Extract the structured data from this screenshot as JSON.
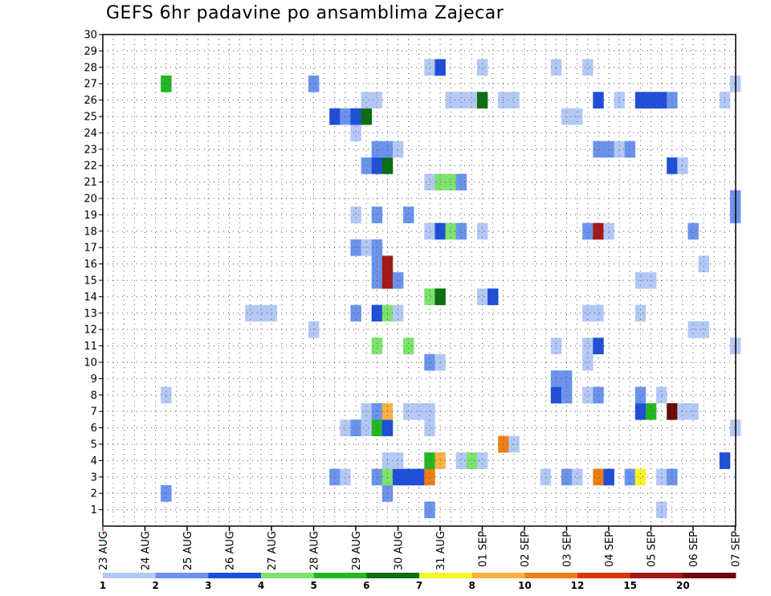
{
  "chart_data": {
    "type": "heatmap",
    "title": "GEFS 6hr padavine po ansamblima Zajecar",
    "x_tick_labels": [
      "23 AUG",
      "24 AUG",
      "25 AUG",
      "26 AUG",
      "27 AUG",
      "28 AUG",
      "29 AUG",
      "30 AUG",
      "31 AUG",
      "01 SEP",
      "02 SEP",
      "03 SEP",
      "04 SEP",
      "05 SEP",
      "06 SEP",
      "07 SEP"
    ],
    "y_tick_labels": [
      "1",
      "2",
      "3",
      "4",
      "5",
      "6",
      "7",
      "8",
      "9",
      "10",
      "11",
      "12",
      "13",
      "14",
      "15",
      "16",
      "17",
      "18",
      "19",
      "20",
      "21",
      "22",
      "23",
      "24",
      "25",
      "26",
      "27",
      "28",
      "29",
      "30"
    ],
    "ylim": [
      0,
      30
    ],
    "x_steps_per_day": 4,
    "grid": true,
    "legend": {
      "placement": "bottom",
      "colors": [
        "#b3c8f5",
        "#6b93ec",
        "#1f4fd9",
        "#7be36b",
        "#22b722",
        "#0d6e12",
        "#f5f52a",
        "#f7b240",
        "#f07e10",
        "#d8360e",
        "#a41818",
        "#6b0808"
      ],
      "labels": [
        "1",
        "2",
        "3",
        "4",
        "5",
        "6",
        "7",
        "8",
        "10",
        "12",
        "15",
        "20"
      ]
    },
    "cells": [
      [
        1,
        31,
        2
      ],
      [
        1,
        53,
        1
      ],
      [
        2,
        6,
        2
      ],
      [
        2,
        27,
        2
      ],
      [
        3,
        22,
        2
      ],
      [
        3,
        23,
        1
      ],
      [
        3,
        26,
        2
      ],
      [
        3,
        27,
        4
      ],
      [
        3,
        28,
        3
      ],
      [
        3,
        29,
        3
      ],
      [
        3,
        30,
        3
      ],
      [
        3,
        31,
        10
      ],
      [
        3,
        42,
        1
      ],
      [
        3,
        44,
        2
      ],
      [
        3,
        45,
        1
      ],
      [
        3,
        47,
        10
      ],
      [
        3,
        48,
        3
      ],
      [
        3,
        50,
        2
      ],
      [
        3,
        51,
        7
      ],
      [
        3,
        53,
        1
      ],
      [
        3,
        54,
        2
      ],
      [
        4,
        27,
        1
      ],
      [
        4,
        28,
        1
      ],
      [
        4,
        31,
        5
      ],
      [
        4,
        32,
        8
      ],
      [
        4,
        34,
        1
      ],
      [
        4,
        35,
        4
      ],
      [
        4,
        36,
        1
      ],
      [
        4,
        59,
        3
      ],
      [
        5,
        38,
        10
      ],
      [
        5,
        39,
        1
      ],
      [
        6,
        23,
        1
      ],
      [
        6,
        24,
        2
      ],
      [
        6,
        25,
        1
      ],
      [
        6,
        26,
        5
      ],
      [
        6,
        27,
        3
      ],
      [
        6,
        31,
        1
      ],
      [
        6,
        60,
        1
      ],
      [
        7,
        25,
        1
      ],
      [
        7,
        26,
        2
      ],
      [
        7,
        27,
        8
      ],
      [
        7,
        29,
        1
      ],
      [
        7,
        30,
        1
      ],
      [
        7,
        31,
        1
      ],
      [
        7,
        51,
        3
      ],
      [
        7,
        52,
        5
      ],
      [
        7,
        54,
        20
      ],
      [
        7,
        55,
        1
      ],
      [
        7,
        56,
        1
      ],
      [
        8,
        6,
        1
      ],
      [
        8,
        43,
        3
      ],
      [
        8,
        44,
        2
      ],
      [
        8,
        46,
        1
      ],
      [
        8,
        47,
        2
      ],
      [
        8,
        51,
        2
      ],
      [
        8,
        53,
        1
      ],
      [
        9,
        43,
        2
      ],
      [
        9,
        44,
        2
      ],
      [
        10,
        31,
        2
      ],
      [
        10,
        32,
        1
      ],
      [
        10,
        46,
        1
      ],
      [
        11,
        26,
        4
      ],
      [
        11,
        29,
        4
      ],
      [
        11,
        43,
        1
      ],
      [
        11,
        46,
        1
      ],
      [
        11,
        47,
        3
      ],
      [
        11,
        60,
        1
      ],
      [
        12,
        20,
        1
      ],
      [
        12,
        56,
        1
      ],
      [
        12,
        57,
        1
      ],
      [
        13,
        14,
        1
      ],
      [
        13,
        15,
        1
      ],
      [
        13,
        16,
        1
      ],
      [
        13,
        24,
        2
      ],
      [
        13,
        26,
        3
      ],
      [
        13,
        27,
        4
      ],
      [
        13,
        28,
        1
      ],
      [
        13,
        46,
        1
      ],
      [
        13,
        47,
        1
      ],
      [
        13,
        51,
        1
      ],
      [
        14,
        31,
        4
      ],
      [
        14,
        32,
        6
      ],
      [
        14,
        36,
        1
      ],
      [
        14,
        37,
        3
      ],
      [
        15,
        26,
        2
      ],
      [
        15,
        27,
        15
      ],
      [
        15,
        28,
        2
      ],
      [
        15,
        51,
        1
      ],
      [
        15,
        52,
        1
      ],
      [
        16,
        26,
        2
      ],
      [
        16,
        27,
        15
      ],
      [
        16,
        57,
        1
      ],
      [
        17,
        24,
        2
      ],
      [
        17,
        25,
        1
      ],
      [
        17,
        26,
        2
      ],
      [
        18,
        31,
        1
      ],
      [
        18,
        32,
        3
      ],
      [
        18,
        33,
        4
      ],
      [
        18,
        34,
        2
      ],
      [
        18,
        36,
        1
      ],
      [
        18,
        46,
        2
      ],
      [
        18,
        47,
        15
      ],
      [
        18,
        48,
        1
      ],
      [
        18,
        56,
        2
      ],
      [
        19,
        24,
        1
      ],
      [
        19,
        26,
        2
      ],
      [
        19,
        29,
        2
      ],
      [
        19,
        60,
        2
      ],
      [
        20,
        60,
        2
      ],
      [
        21,
        31,
        1
      ],
      [
        21,
        32,
        4
      ],
      [
        21,
        33,
        4
      ],
      [
        21,
        34,
        2
      ],
      [
        22,
        25,
        2
      ],
      [
        22,
        26,
        3
      ],
      [
        22,
        27,
        6
      ],
      [
        22,
        54,
        3
      ],
      [
        22,
        55,
        1
      ],
      [
        23,
        26,
        2
      ],
      [
        23,
        27,
        2
      ],
      [
        23,
        28,
        1
      ],
      [
        23,
        47,
        2
      ],
      [
        23,
        48,
        2
      ],
      [
        23,
        49,
        1
      ],
      [
        23,
        50,
        2
      ],
      [
        24,
        24,
        1
      ],
      [
        25,
        22,
        3
      ],
      [
        25,
        23,
        2
      ],
      [
        25,
        24,
        3
      ],
      [
        25,
        25,
        6
      ],
      [
        25,
        44,
        1
      ],
      [
        25,
        45,
        1
      ],
      [
        26,
        25,
        1
      ],
      [
        26,
        26,
        1
      ],
      [
        26,
        33,
        1
      ],
      [
        26,
        34,
        1
      ],
      [
        26,
        35,
        1
      ],
      [
        26,
        36,
        6
      ],
      [
        26,
        38,
        1
      ],
      [
        26,
        39,
        1
      ],
      [
        26,
        47,
        3
      ],
      [
        26,
        49,
        1
      ],
      [
        26,
        51,
        3
      ],
      [
        26,
        52,
        3
      ],
      [
        26,
        53,
        3
      ],
      [
        26,
        54,
        2
      ],
      [
        26,
        59,
        1
      ],
      [
        27,
        6,
        5
      ],
      [
        27,
        20,
        2
      ],
      [
        27,
        60,
        1
      ],
      [
        28,
        31,
        1
      ],
      [
        28,
        32,
        3
      ],
      [
        28,
        36,
        1
      ],
      [
        28,
        43,
        1
      ],
      [
        28,
        46,
        1
      ]
    ]
  }
}
